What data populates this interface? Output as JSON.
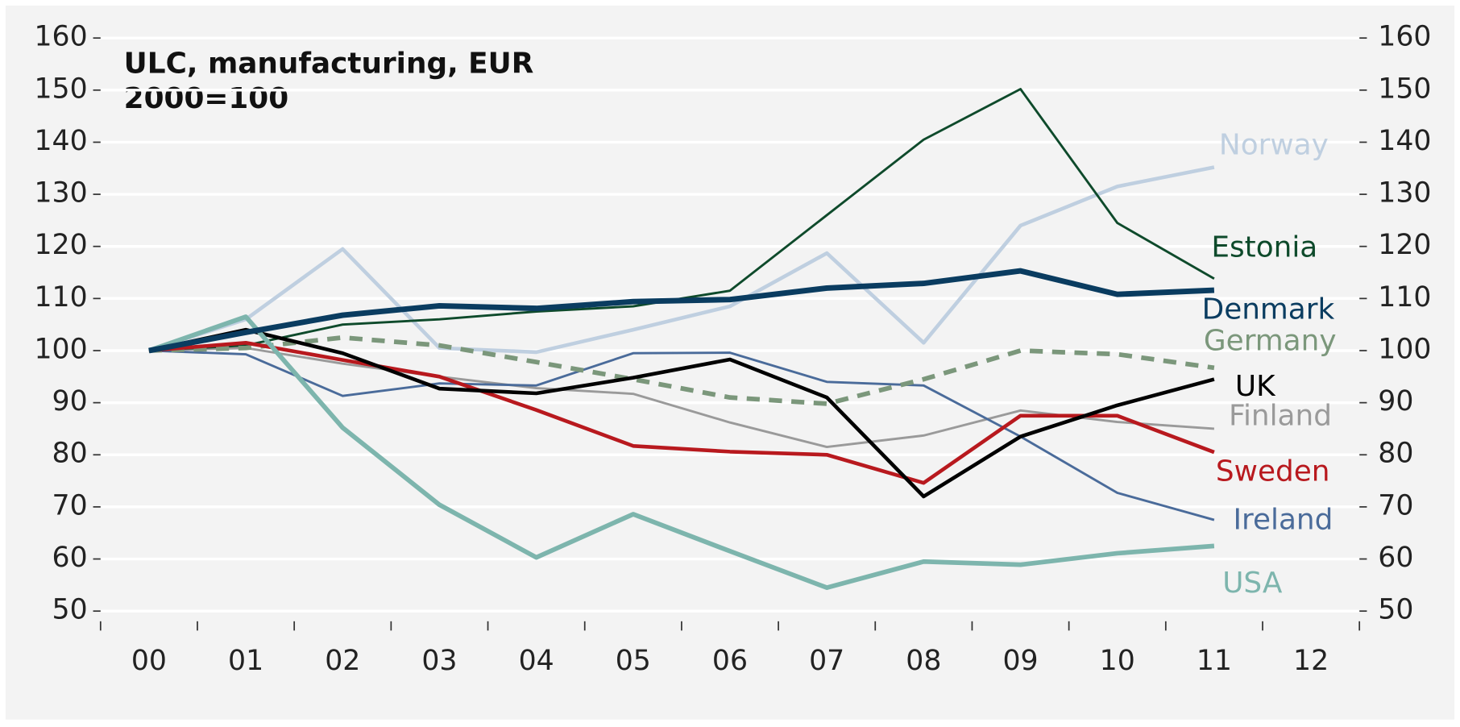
{
  "chart_data": {
    "type": "line",
    "title": "ULC, manufacturing, EUR",
    "subtitle": "2000=100",
    "categories": [
      "00",
      "01",
      "02",
      "03",
      "04",
      "05",
      "06",
      "07",
      "08",
      "09",
      "10",
      "11",
      "12"
    ],
    "ylim": [
      50,
      160
    ],
    "yticks": [
      50,
      60,
      70,
      80,
      90,
      100,
      110,
      120,
      130,
      140,
      150,
      160
    ],
    "y2lim": [
      50,
      160
    ],
    "y2ticks": [
      50,
      60,
      70,
      80,
      90,
      100,
      110,
      120,
      130,
      140,
      150,
      160
    ],
    "grid": true,
    "series": [
      {
        "name": "Norway",
        "color": "#bfcfe0",
        "values": [
          100,
          106,
          119.5,
          100.5,
          99.7,
          104,
          108.5,
          118.7,
          101.5,
          124,
          131.5,
          135.2,
          null
        ]
      },
      {
        "name": "Estonia",
        "color": "#0e4a2b",
        "values": [
          100,
          101,
          105,
          106,
          107.5,
          108.5,
          111.5,
          126,
          140.5,
          150.2,
          124.5,
          113.8,
          null
        ]
      },
      {
        "name": "Denmark",
        "color": "#0a3c60",
        "values": [
          100,
          103.5,
          106.8,
          108.6,
          108.1,
          109.4,
          109.8,
          112,
          112.9,
          115.3,
          110.8,
          111.6,
          null
        ]
      },
      {
        "name": "Germany",
        "color": "#7b977b",
        "dashed": true,
        "values": [
          100,
          100.5,
          102.5,
          101,
          97.8,
          94.5,
          91,
          89.8,
          94.5,
          100,
          99.3,
          96.7,
          null
        ]
      },
      {
        "name": "UK",
        "color": "#000000",
        "values": [
          100,
          104,
          99.5,
          92.7,
          91.8,
          94.8,
          98.3,
          91,
          72,
          83.5,
          89.5,
          94.5,
          null
        ]
      },
      {
        "name": "Finland",
        "color": "#9a9a9a",
        "values": [
          100,
          100.5,
          97.5,
          95,
          92.8,
          91.7,
          86.2,
          81.5,
          83.7,
          88.5,
          86.3,
          85,
          null
        ]
      },
      {
        "name": "Sweden",
        "color": "#b8191e",
        "values": [
          100,
          101.5,
          98.2,
          95,
          88.6,
          81.7,
          80.6,
          80,
          74.6,
          87.5,
          87.5,
          80.5,
          null
        ]
      },
      {
        "name": "Ireland",
        "color": "#4a6b9a",
        "values": [
          100,
          99.3,
          91.3,
          93.7,
          93.3,
          99.5,
          99.6,
          94,
          93.3,
          83.5,
          72.7,
          67.5,
          null
        ]
      },
      {
        "name": "USA",
        "color": "#7db5ad",
        "values": [
          100,
          106.5,
          85.2,
          70.4,
          60.3,
          68.6,
          61.5,
          54.5,
          59.5,
          58.9,
          61.1,
          62.5,
          null
        ]
      }
    ]
  }
}
